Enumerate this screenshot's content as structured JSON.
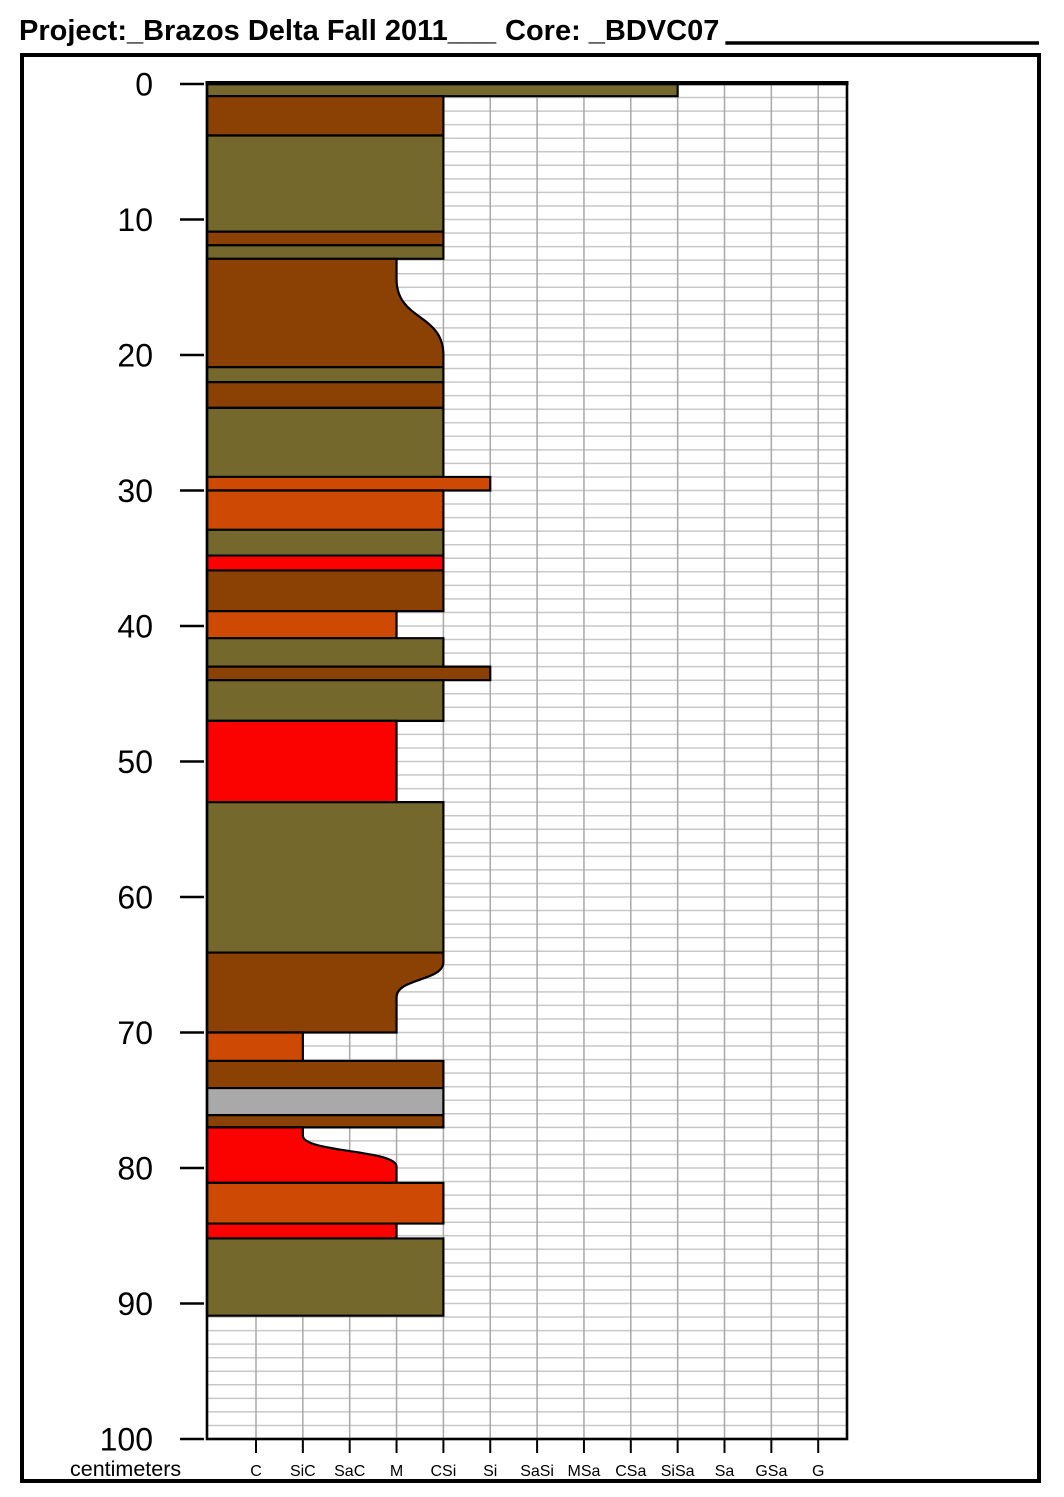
{
  "header": {
    "project_title": "Project:_Brazos Delta Fall 2011___",
    "core_title": "Core: _BDVC07"
  },
  "axis": {
    "unit_label": "centimeters",
    "depth_ticks": [
      0,
      10,
      20,
      30,
      40,
      50,
      60,
      70,
      80,
      90,
      100
    ],
    "grain_classes": [
      "C",
      "SiC",
      "SaC",
      "M",
      "CSi",
      "Si",
      "SaSi",
      "MSa",
      "CSa",
      "SiSa",
      "Sa",
      "GSa",
      "G"
    ]
  },
  "colors": {
    "olive": "#75682C",
    "brown": "#8B4104",
    "orange": "#CE4A04",
    "red": "#FB0200",
    "gray": "#A9A9A9",
    "grid_horizontal": "#C8C8C8",
    "grid_vertical": "#A8A8A8",
    "outline": "#000000"
  },
  "chart_data": {
    "type": "stratigraphic-column",
    "title": "Project: Brazos Delta Fall 2011 — Core: BDVC07",
    "ylabel": "centimeters",
    "ylim": [
      0,
      100
    ],
    "y_ticks": [
      0,
      10,
      20,
      30,
      40,
      50,
      60,
      70,
      80,
      90,
      100
    ],
    "x_categories": [
      "C",
      "SiC",
      "SaC",
      "M",
      "CSi",
      "Si",
      "SaSi",
      "MSa",
      "CSa",
      "SiSa",
      "Sa",
      "GSa",
      "G"
    ],
    "x_axis_meaning": "grain size class, bar width = coarsest texture of layer",
    "grid": true,
    "legend_position": "none",
    "layers": [
      {
        "top": 0.0,
        "bottom": 0.9,
        "class": "SiSa",
        "color": "olive"
      },
      {
        "top": 0.9,
        "bottom": 3.8,
        "class": "CSi",
        "color": "brown"
      },
      {
        "top": 3.8,
        "bottom": 10.9,
        "class": "CSi",
        "color": "olive"
      },
      {
        "top": 10.9,
        "bottom": 11.9,
        "class": "CSi",
        "color": "brown"
      },
      {
        "top": 11.9,
        "bottom": 12.9,
        "class": "CSi",
        "color": "olive"
      },
      {
        "top": 12.9,
        "bottom": 20.9,
        "class_top": "M",
        "class_bottom": "CSi",
        "curve_start": 14.4,
        "curve_end": 20.0,
        "color": "brown"
      },
      {
        "top": 20.9,
        "bottom": 22.0,
        "class": "CSi",
        "color": "olive"
      },
      {
        "top": 22.0,
        "bottom": 23.9,
        "class": "CSi",
        "color": "brown"
      },
      {
        "top": 23.9,
        "bottom": 29.0,
        "class": "CSi",
        "color": "olive"
      },
      {
        "top": 29.0,
        "bottom": 30.0,
        "class": "Si",
        "color": "orange"
      },
      {
        "top": 30.0,
        "bottom": 32.9,
        "class": "CSi",
        "color": "orange"
      },
      {
        "top": 32.9,
        "bottom": 34.8,
        "class": "CSi",
        "color": "olive"
      },
      {
        "top": 34.8,
        "bottom": 35.9,
        "class": "CSi",
        "color": "red"
      },
      {
        "top": 35.9,
        "bottom": 38.9,
        "class": "CSi",
        "color": "brown"
      },
      {
        "top": 38.9,
        "bottom": 40.9,
        "class": "M",
        "color": "orange"
      },
      {
        "top": 40.9,
        "bottom": 43.0,
        "class": "CSi",
        "color": "olive"
      },
      {
        "top": 43.0,
        "bottom": 44.0,
        "class": "Si",
        "color": "brown"
      },
      {
        "top": 44.0,
        "bottom": 47.0,
        "class": "CSi",
        "color": "olive"
      },
      {
        "top": 47.0,
        "bottom": 53.0,
        "class": "M",
        "color": "red"
      },
      {
        "top": 53.0,
        "bottom": 64.1,
        "class": "CSi",
        "color": "olive"
      },
      {
        "top": 64.1,
        "bottom": 70.0,
        "class_top": "CSi",
        "class_bottom": "M",
        "curve_start": 64.8,
        "curve_end": 67.4,
        "color": "brown"
      },
      {
        "top": 70.0,
        "bottom": 72.1,
        "class": "SiC",
        "color": "orange"
      },
      {
        "top": 72.1,
        "bottom": 74.1,
        "class": "CSi",
        "color": "brown"
      },
      {
        "top": 74.1,
        "bottom": 76.1,
        "class": "CSi",
        "color": "gray"
      },
      {
        "top": 76.1,
        "bottom": 77.0,
        "class": "CSi",
        "color": "brown"
      },
      {
        "top": 77.0,
        "bottom": 81.1,
        "class_top": "SiC",
        "class_bottom": "M",
        "curve_start": 77.6,
        "curve_end": 79.9,
        "color": "red"
      },
      {
        "top": 81.1,
        "bottom": 84.1,
        "class": "CSi",
        "color": "orange"
      },
      {
        "top": 84.1,
        "bottom": 85.2,
        "class": "M",
        "color": "red"
      },
      {
        "top": 85.2,
        "bottom": 90.9,
        "class": "CSi",
        "color": "olive"
      }
    ]
  }
}
